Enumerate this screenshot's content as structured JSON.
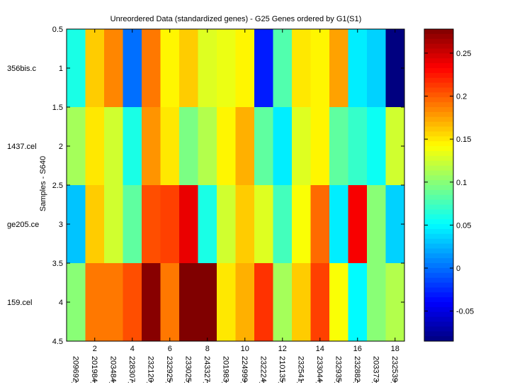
{
  "chart_data": {
    "type": "heatmap",
    "title": "Unreordered Data (standardized genes) - G25 Genes ordered by G1(S1)",
    "xlabel": "",
    "ylabel": "Samples - S640",
    "xlim": [
      0.5,
      18.5
    ],
    "ylim": [
      0.5,
      4.5
    ],
    "x_ticks": [
      "2",
      "4",
      "6",
      "8",
      "10",
      "12",
      "14",
      "16",
      "18"
    ],
    "y_ticks": [
      "0.5",
      "1",
      "1.5",
      "2",
      "2.5",
      "3",
      "3.5",
      "4",
      "4.5"
    ],
    "row_labels": [
      "356bis.c",
      "1437.cel",
      "ge205.ce",
      "159.cel"
    ],
    "col_labels": [
      "209692_",
      "201984_",
      "203484_",
      "228307_",
      "232120_",
      "232925_",
      "233025_",
      "243327_",
      "201983_",
      "224999_",
      "232224_",
      "210135_",
      "232541_",
      "233044_",
      "232935_",
      "232882_",
      "203373_",
      "232539_"
    ],
    "values": [
      [
        0.06,
        0.16,
        0.185,
        0.0,
        0.19,
        0.145,
        0.16,
        0.13,
        0.135,
        0.145,
        -0.03,
        0.08,
        0.15,
        0.145,
        0.175,
        0.045,
        0.035,
        -0.085
      ],
      [
        0.11,
        0.15,
        0.125,
        0.06,
        0.18,
        0.15,
        0.095,
        0.115,
        0.145,
        0.17,
        0.085,
        0.045,
        0.13,
        0.145,
        0.085,
        0.07,
        0.055,
        0.125
      ],
      [
        0.03,
        0.16,
        0.125,
        0.085,
        0.205,
        0.21,
        0.24,
        0.06,
        0.125,
        0.16,
        0.13,
        0.075,
        0.14,
        0.195,
        0.045,
        0.235,
        0.1,
        0.035
      ],
      [
        0.1,
        0.19,
        0.19,
        0.205,
        0.275,
        0.19,
        0.278,
        0.278,
        0.15,
        0.17,
        0.215,
        0.11,
        0.16,
        0.21,
        0.14,
        0.05,
        0.1,
        0.115
      ]
    ],
    "colorbar": {
      "range": [
        -0.085,
        0.278
      ],
      "ticks": [
        "-0.05",
        "0",
        "0.05",
        "0.1",
        "0.15",
        "0.2",
        "0.25"
      ],
      "tick_values": [
        -0.05,
        0,
        0.05,
        0.1,
        0.15,
        0.2,
        0.25
      ],
      "colormap": "jet"
    }
  }
}
